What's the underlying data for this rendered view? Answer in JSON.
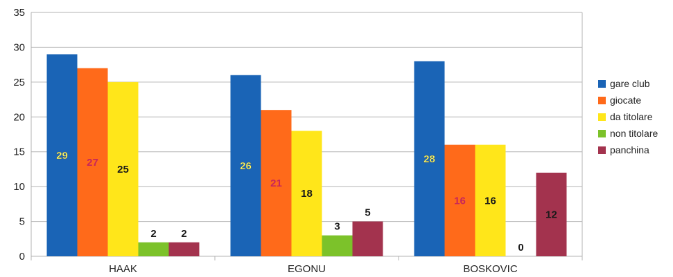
{
  "chart_data": {
    "type": "bar",
    "categories": [
      "HAAK",
      "EGONU",
      "BOSKOVIC"
    ],
    "series": [
      {
        "name": "gare club",
        "color": "#1a64b6",
        "values": [
          29,
          26,
          28
        ],
        "label_color": "#ffff66"
      },
      {
        "name": "giocate",
        "color": "#ff6a1a",
        "values": [
          27,
          21,
          16
        ],
        "label_color": "#c8265a"
      },
      {
        "name": "da titolare",
        "color": "#ffe61a",
        "values": [
          25,
          18,
          16
        ],
        "label_color": "#1a1a1a"
      },
      {
        "name": "non titolare",
        "color": "#7cc22a",
        "values": [
          2,
          3,
          0
        ],
        "label_color": "#1a1a1a"
      },
      {
        "name": "panchina",
        "color": "#a3334e",
        "values": [
          2,
          5,
          12
        ],
        "label_color": "#1a1a1a"
      }
    ],
    "title": "",
    "xlabel": "",
    "ylabel": "",
    "ylim": [
      0,
      35
    ],
    "yticks": [
      "0",
      "5",
      "10",
      "15",
      "20",
      "25",
      "30",
      "35"
    ],
    "grid": true,
    "legend": "right"
  }
}
